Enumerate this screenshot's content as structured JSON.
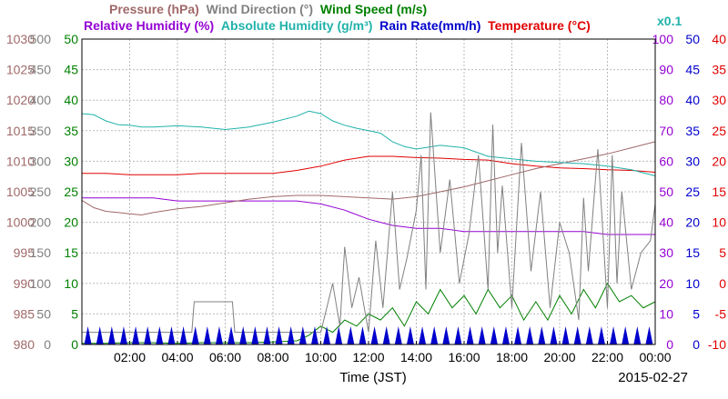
{
  "chart_data": {
    "type": "line",
    "title_line1": [
      {
        "text": "Pressure (hPa)",
        "color": "#a06868"
      },
      {
        "text": "Wind Direction (°)",
        "color": "#808080"
      },
      {
        "text": "Wind Speed (m/s)",
        "color": "#008000"
      }
    ],
    "title_line2": [
      {
        "text": "Relative Humidity (%)",
        "color": "#9400d3"
      },
      {
        "text": "Absolute Humidity (g/m³)",
        "color": "#20b2aa"
      },
      {
        "text": "Rain Rate(mm/h)",
        "color": "#0000cd"
      },
      {
        "text": "Temperature (°C)",
        "color": "#e00000"
      }
    ],
    "rain_scale_note": "x0.1",
    "xlabel": "Time (JST)",
    "date": "2015-02-27",
    "x_ticks": [
      "02:00",
      "04:00",
      "06:00",
      "08:00",
      "10:00",
      "12:00",
      "14:00",
      "16:00",
      "18:00",
      "20:00",
      "22:00",
      "00:00"
    ],
    "axes": {
      "pressure": {
        "ticks": [
          "1030",
          "1025",
          "1020",
          "1015",
          "1010",
          "1005",
          "1000",
          "995",
          "990",
          "985",
          "980"
        ],
        "range": [
          980,
          1030
        ],
        "color": "#a06868"
      },
      "wind_direction": {
        "ticks": [
          "500",
          "450",
          "400",
          "350",
          "300",
          "250",
          "200",
          "150",
          "100",
          "50",
          "0"
        ],
        "range": [
          0,
          500
        ],
        "color": "#808080"
      },
      "wind_speed": {
        "ticks": [
          "50",
          "45",
          "40",
          "35",
          "30",
          "25",
          "20",
          "15",
          "10",
          "5",
          "0"
        ],
        "range": [
          0,
          50
        ],
        "color": "#008000"
      },
      "relative_humidity": {
        "ticks": [
          "100",
          "90",
          "80",
          "70",
          "60",
          "50",
          "40",
          "30",
          "20",
          "10",
          "0"
        ],
        "range": [
          0,
          100
        ],
        "color": "#9400d3"
      },
      "absolute_humidity": {
        "ticks": [
          "50",
          "45",
          "40",
          "35",
          "30",
          "25",
          "20",
          "15",
          "10",
          "5",
          "0"
        ],
        "range": [
          0,
          50
        ],
        "color": "#0000cd"
      },
      "temperature": {
        "ticks": [
          "40",
          "35",
          "30",
          "25",
          "20",
          "15",
          "10",
          "5",
          "0",
          "-5",
          "-10"
        ],
        "range": [
          -10,
          40
        ],
        "color": "#e00000"
      }
    },
    "x_range_hours": [
      0,
      24
    ],
    "grid": true,
    "series": [
      {
        "name": "Temperature (°C)",
        "color": "#e00000",
        "axis": "temperature",
        "x": [
          0,
          1,
          2,
          3,
          4,
          5,
          6,
          7,
          8,
          9,
          10,
          11,
          12,
          13,
          14,
          15,
          16,
          17,
          18,
          19,
          20,
          21,
          22,
          23,
          24
        ],
        "y": [
          18.0,
          18.0,
          17.8,
          17.8,
          17.8,
          18.0,
          18.0,
          18.0,
          18.0,
          18.5,
          19.2,
          20.2,
          20.8,
          20.8,
          20.6,
          20.5,
          20.3,
          20.2,
          19.6,
          19.2,
          18.9,
          18.8,
          18.6,
          18.5,
          18.2
        ]
      },
      {
        "name": "Relative Humidity (%)",
        "color": "#9400d3",
        "axis": "relative_humidity",
        "x": [
          0,
          1,
          2,
          3,
          4,
          5,
          6,
          7,
          8,
          9,
          10,
          11,
          12,
          13,
          14,
          15,
          16,
          17,
          18,
          19,
          20,
          21,
          22,
          23,
          24
        ],
        "y": [
          48,
          48,
          48,
          48,
          47,
          47,
          47,
          47,
          47,
          47,
          46,
          44,
          41,
          39,
          38,
          38,
          37,
          37,
          37,
          37,
          37,
          37,
          36,
          36,
          36
        ]
      },
      {
        "name": "Pressure (hPa)",
        "color": "#a06868",
        "axis": "pressure",
        "x": [
          0,
          0.5,
          1,
          1.5,
          2,
          2.5,
          3,
          4,
          5,
          6,
          7,
          8,
          9,
          10,
          11,
          12,
          13,
          14,
          15,
          16,
          17,
          18,
          19,
          20,
          21,
          22,
          23,
          24
        ],
        "y": [
          1003.6,
          1002.4,
          1001.8,
          1001.6,
          1001.4,
          1001.2,
          1001.6,
          1002.2,
          1002.6,
          1003.2,
          1003.8,
          1004.2,
          1004.4,
          1004.4,
          1004.2,
          1004.0,
          1003.8,
          1004.2,
          1005.0,
          1005.8,
          1006.8,
          1007.8,
          1008.8,
          1009.6,
          1010.4,
          1011.2,
          1012.2,
          1013.2
        ]
      },
      {
        "name": "Absolute Humidity (g/m³)",
        "color": "#20b2aa",
        "axis": "absolute_humidity",
        "scale": 10,
        "x": [
          0,
          0.5,
          1,
          1.5,
          2,
          2.5,
          3,
          4,
          5,
          6,
          7,
          8,
          9,
          9.5,
          10,
          10.5,
          11,
          11.5,
          12,
          12.5,
          13,
          13.5,
          14,
          15,
          16,
          17,
          18,
          19,
          20,
          21,
          22,
          23,
          24
        ],
        "y": [
          37.8,
          37.6,
          36.6,
          36.0,
          35.9,
          35.6,
          35.6,
          35.8,
          35.6,
          35.2,
          35.6,
          36.4,
          37.4,
          38.2,
          37.8,
          36.6,
          35.9,
          35.4,
          35.0,
          34.6,
          33.2,
          32.4,
          32.0,
          32.6,
          32.2,
          30.8,
          30.4,
          30.0,
          29.8,
          29.6,
          29.2,
          28.6,
          27.6
        ]
      },
      {
        "name": "Wind Speed (m/s)",
        "color": "#008000",
        "axis": "wind_speed",
        "x": [
          0,
          1,
          2,
          3,
          4,
          5,
          6,
          7,
          8,
          9,
          9.5,
          10,
          10.5,
          11,
          11.5,
          12,
          12.5,
          13,
          13.5,
          14,
          14.5,
          15,
          15.5,
          16,
          16.5,
          17,
          17.5,
          18,
          18.5,
          19,
          19.5,
          20,
          20.5,
          21,
          21.5,
          22,
          22.5,
          23,
          23.5,
          24
        ],
        "y": [
          0.2,
          0.2,
          0.3,
          0.3,
          0.2,
          0.3,
          0.3,
          0.3,
          0.4,
          0.6,
          1.5,
          3,
          2,
          4,
          3,
          5,
          4,
          6,
          3,
          7,
          5,
          9,
          6,
          8,
          5,
          9,
          6,
          8,
          4,
          7,
          4,
          8,
          5,
          9,
          6,
          10,
          7,
          8,
          6,
          7
        ]
      },
      {
        "name": "Wind Direction (°)",
        "color": "#808080",
        "axis": "wind_direction",
        "x": [
          0,
          4.6,
          4.7,
          6.3,
          6.4,
          10,
          10.5,
          10.8,
          11,
          11.3,
          11.6,
          12,
          12.3,
          12.6,
          13,
          13.3,
          13.6,
          14,
          14.2,
          14.4,
          14.6,
          15,
          15.4,
          15.8,
          16.2,
          16.6,
          17,
          17.2,
          17.4,
          17.6,
          18,
          18.4,
          18.8,
          19.2,
          19.6,
          20,
          20.4,
          20.8,
          21,
          21.2,
          21.6,
          22,
          22.2,
          22.4,
          22.6,
          23,
          23.4,
          23.8,
          24
        ],
        "y": [
          20,
          20,
          70,
          70,
          20,
          20,
          100,
          30,
          160,
          60,
          110,
          20,
          170,
          60,
          250,
          90,
          140,
          220,
          310,
          90,
          380,
          150,
          270,
          100,
          180,
          310,
          90,
          360,
          150,
          260,
          60,
          330,
          120,
          250,
          60,
          200,
          150,
          40,
          240,
          120,
          320,
          60,
          310,
          100,
          250,
          90,
          150,
          170,
          230
        ]
      }
    ],
    "rain_markers_x": [
      0.25,
      0.75,
      1.25,
      1.75,
      2.25,
      2.75,
      3.25,
      3.75,
      4.25,
      4.75,
      5.25,
      5.75,
      6.25,
      6.75,
      7.25,
      7.75,
      8.25,
      8.75,
      9.25,
      9.75,
      10.25,
      10.75,
      11.25,
      11.75,
      12.25,
      12.75,
      13.25,
      13.75,
      14.25,
      14.75,
      15.25,
      15.75,
      16.25,
      16.75,
      17.25,
      17.75,
      18.25,
      18.75,
      19.25,
      19.75,
      20.25,
      20.75,
      21.25,
      21.75,
      22.25,
      22.75,
      23.25,
      23.75
    ]
  },
  "colors": {
    "grid": "#bbbbbb",
    "frame": "#000000",
    "rain": "#0000cd"
  }
}
